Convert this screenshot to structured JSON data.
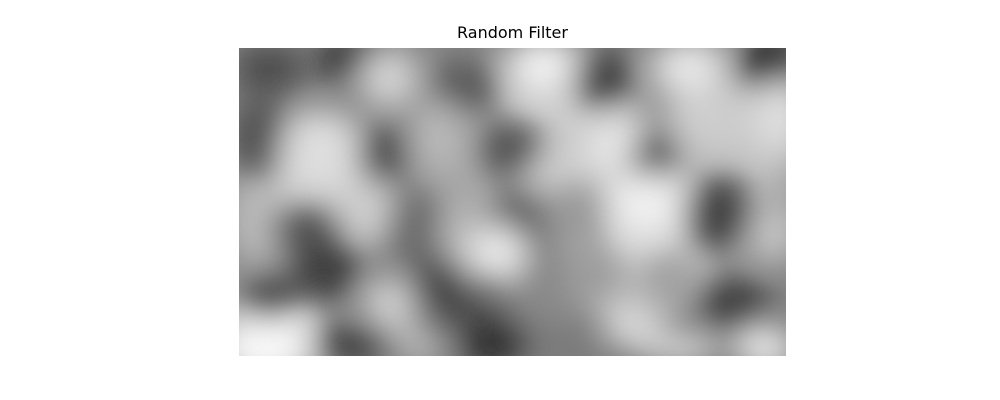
{
  "figure": {
    "title": "Random Filter"
  },
  "image": {
    "colormap": "gray",
    "axis_visible": false,
    "content": "blurred-random-noise"
  }
}
